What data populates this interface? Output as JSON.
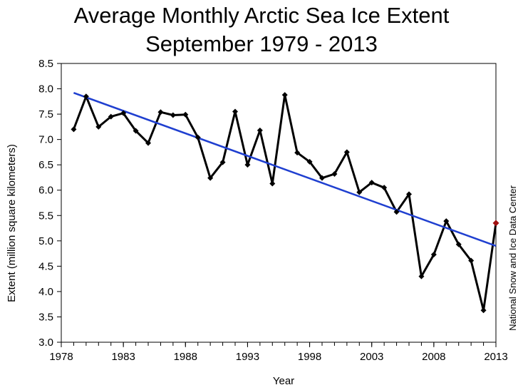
{
  "chart_data": {
    "type": "line",
    "title": "Average Monthly Arctic Sea Ice Extent",
    "subtitle": "September 1979 - 2013",
    "xlabel": "Year",
    "ylabel": "Extent (million square kilometers)",
    "credit": "National Snow and Ice Data Center",
    "xlim": [
      1978,
      2013
    ],
    "ylim": [
      3.0,
      8.5
    ],
    "xticks": [
      "1978",
      "1983",
      "1988",
      "1993",
      "1998",
      "2003",
      "2008",
      "2013"
    ],
    "yticks": [
      "3.0",
      "3.5",
      "4.0",
      "4.5",
      "5.0",
      "5.5",
      "6.0",
      "6.5",
      "7.0",
      "7.5",
      "8.0",
      "8.5"
    ],
    "grid": false,
    "series": [
      {
        "color": "#000000",
        "x": [
          1979,
          1980,
          1981,
          1982,
          1983,
          1984,
          1985,
          1986,
          1987,
          1988,
          1989,
          1990,
          1991,
          1992,
          1993,
          1994,
          1995,
          1996,
          1997,
          1998,
          1999,
          2000,
          2001,
          2002,
          2003,
          2004,
          2005,
          2006,
          2007,
          2008,
          2009,
          2010,
          2011,
          2012,
          2013
        ],
        "values": [
          7.2,
          7.85,
          7.25,
          7.45,
          7.52,
          7.17,
          6.93,
          7.54,
          7.48,
          7.49,
          7.04,
          6.24,
          6.55,
          7.55,
          6.5,
          7.18,
          6.13,
          7.88,
          6.74,
          6.56,
          6.24,
          6.32,
          6.75,
          5.96,
          6.15,
          6.05,
          5.57,
          5.92,
          4.3,
          4.73,
          5.39,
          4.93,
          4.61,
          3.63,
          5.35
        ]
      },
      {
        "color": "#1f3fd0",
        "type": "trend",
        "x": [
          1979,
          2013
        ],
        "values": [
          7.92,
          4.9
        ]
      }
    ],
    "highlight": {
      "x": 2013,
      "value": 5.35,
      "color": "#a01010"
    }
  }
}
